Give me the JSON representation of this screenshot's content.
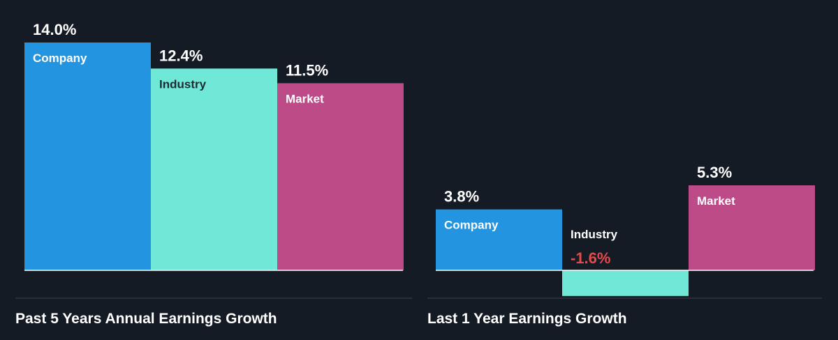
{
  "colors": {
    "background": "#151b24",
    "company": "#2394e0",
    "industry": "#6fe8d7",
    "market": "#bc4b88",
    "baseline": "#ffffff",
    "divider": "#3a4350",
    "negative_text": "#e64a4a"
  },
  "chart_data": [
    {
      "type": "bar",
      "title": "Past 5 Years Annual Earnings Growth",
      "categories": [
        "Company",
        "Industry",
        "Market"
      ],
      "values": [
        14.0,
        12.4,
        11.5
      ],
      "value_labels": [
        "14.0%",
        "12.4%",
        "11.5%"
      ],
      "unit": "%",
      "ylim": [
        0,
        14.0
      ],
      "grid": false,
      "legend": "none"
    },
    {
      "type": "bar",
      "title": "Last 1 Year Earnings Growth",
      "categories": [
        "Company",
        "Industry",
        "Market"
      ],
      "values": [
        3.8,
        -1.6,
        5.3
      ],
      "value_labels": [
        "3.8%",
        "-1.6%",
        "5.3%"
      ],
      "unit": "%",
      "ylim": [
        -1.6,
        5.3
      ],
      "grid": false,
      "legend": "none"
    }
  ]
}
